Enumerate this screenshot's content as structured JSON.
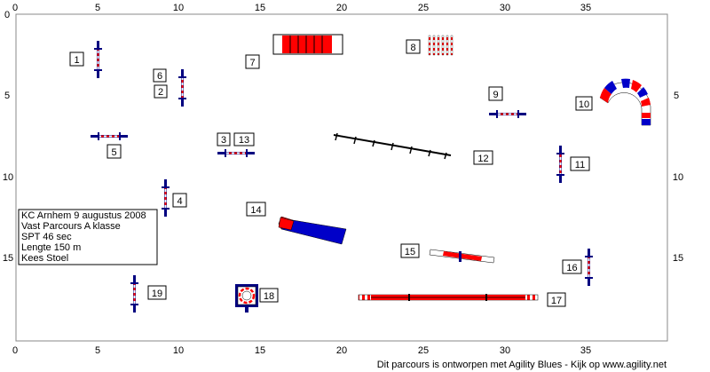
{
  "colors": {
    "red": "#ff0000",
    "blue": "#0000c8",
    "navy": "#000080",
    "black": "#000000",
    "border": "#888888"
  },
  "axes": {
    "top": [
      "0",
      "5",
      "10",
      "15",
      "20",
      "25",
      "30",
      "35"
    ],
    "bottom": [
      "0",
      "5",
      "10",
      "15",
      "20",
      "25",
      "30",
      "35"
    ],
    "left": [
      "0",
      "5",
      "10",
      "15"
    ],
    "right": [
      "5",
      "10",
      "15"
    ]
  },
  "info": {
    "lines": [
      "KC Arnhem 9 augustus 2008",
      "Vast Parcours A klasse",
      "SPT 46 sec",
      "Lengte 150 m",
      "Kees Stoel"
    ]
  },
  "footer": {
    "text": "Dit parcours is ontworpen met Agility Blues - Kijk op www.agility.net"
  },
  "obstacles": [
    {
      "number": "1",
      "type": "jump-vertical"
    },
    {
      "number": "2",
      "type": "jump-vertical"
    },
    {
      "number": "3",
      "type": "jump-horizontal"
    },
    {
      "number": "4",
      "type": "jump-vertical"
    },
    {
      "number": "5",
      "type": "jump-horizontal"
    },
    {
      "number": "6",
      "type": "jump-vertical"
    },
    {
      "number": "7",
      "type": "tunnel"
    },
    {
      "number": "8",
      "type": "weave-poles"
    },
    {
      "number": "9",
      "type": "jump-horizontal"
    },
    {
      "number": "10",
      "type": "curved-tunnel"
    },
    {
      "number": "11",
      "type": "jump-vertical"
    },
    {
      "number": "12",
      "type": "weave-poles"
    },
    {
      "number": "13",
      "type": "jump-horizontal"
    },
    {
      "number": "14",
      "type": "chute"
    },
    {
      "number": "15",
      "type": "seesaw"
    },
    {
      "number": "16",
      "type": "jump-vertical"
    },
    {
      "number": "17",
      "type": "dogwalk"
    },
    {
      "number": "18",
      "type": "tire"
    },
    {
      "number": "19",
      "type": "jump-vertical"
    }
  ]
}
